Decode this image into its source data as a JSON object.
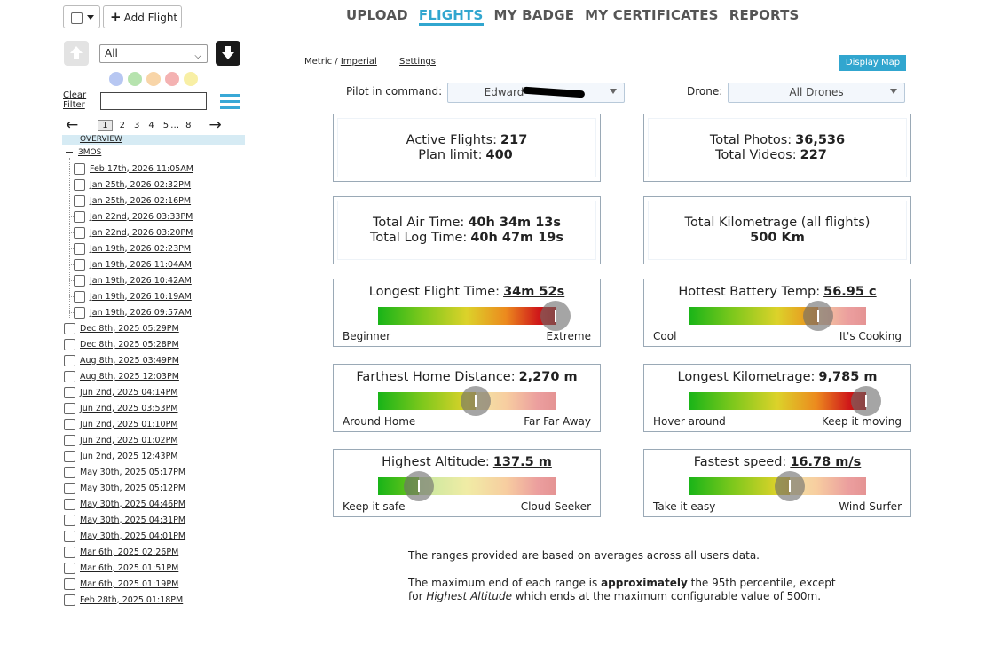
{
  "toolbar": {
    "select_all_caret": "▾",
    "add_flight_icon": "plus-icon",
    "add_flight_label": "Add Flight"
  },
  "nav": {
    "tabs": [
      {
        "label": "UPLOAD",
        "active": false
      },
      {
        "label": "FLIGHTS",
        "active": true
      },
      {
        "label": "MY BADGE",
        "active": false
      },
      {
        "label": "MY CERTIFICATES",
        "active": false
      },
      {
        "label": "REPORTS",
        "active": false
      }
    ],
    "accent_color": "#31a6cf"
  },
  "sidebar": {
    "filter_value": "All",
    "color_filters": [
      "#b7c7f2",
      "#b6e3ae",
      "#f8d5a8",
      "#f4b2b2",
      "#f8efa5"
    ],
    "clear_filter_label": "Clear Filter",
    "filter_input_value": "",
    "pagination": {
      "prev_icon": "←",
      "next_icon": "→",
      "pages": [
        "1",
        "2",
        "3",
        "4",
        "5",
        "…",
        "8"
      ],
      "current": "1"
    },
    "overview_label": "OVERVIEW",
    "group_label": "3MOS",
    "group_flights": [
      "Feb 17th, 2026 11:05AM",
      "Jan 25th, 2026 02:32PM",
      "Jan 25th, 2026 02:16PM",
      "Jan 22nd, 2026 03:33PM",
      "Jan 22nd, 2026 03:20PM",
      "Jan 19th, 2026 02:23PM",
      "Jan 19th, 2026 11:04AM",
      "Jan 19th, 2026 10:42AM",
      "Jan 19th, 2026 10:19AM",
      "Jan 19th, 2026 09:57AM"
    ],
    "flights": [
      "Dec 8th, 2025 05:29PM",
      "Dec 8th, 2025 05:28PM",
      "Aug 8th, 2025 03:49PM",
      "Aug 8th, 2025 12:03PM",
      "Jun 2nd, 2025 04:14PM",
      "Jun 2nd, 2025 03:53PM",
      "Jun 2nd, 2025 01:10PM",
      "Jun 2nd, 2025 01:02PM",
      "Jun 2nd, 2025 12:43PM",
      "May 30th, 2025 05:17PM",
      "May 30th, 2025 05:12PM",
      "May 30th, 2025 04:46PM",
      "May 30th, 2025 04:31PM",
      "May 30th, 2025 04:01PM",
      "Mar 6th, 2025 02:26PM",
      "Mar 6th, 2025 01:51PM",
      "Mar 6th, 2025 01:19PM",
      "Feb 28th, 2025 01:18PM"
    ]
  },
  "main": {
    "units_metric": "Metric",
    "units_sep": " / ",
    "units_imperial": "Imperial",
    "settings_label": "Settings",
    "display_map_label": "Display Map",
    "pilot_label": "Pilot in command:",
    "pilot_value": "Edward",
    "drone_label": "Drone:",
    "drone_value": "All Drones"
  },
  "stats": {
    "active_flights_label": "Active Flights:",
    "active_flights_value": "217",
    "plan_limit_label": "Plan limit:",
    "plan_limit_value": "400",
    "total_photos_label": "Total Photos:",
    "total_photos_value": "36,536",
    "total_videos_label": "Total Videos:",
    "total_videos_value": "227",
    "total_air_time_label": "Total Air Time:",
    "total_air_time_value": "40h 34m 13s",
    "total_log_time_label": "Total Log Time:",
    "total_log_time_value": "40h 47m 19s",
    "total_km_label": "Total Kilometrage (all flights)",
    "total_km_value": "500 Km"
  },
  "gauges": [
    {
      "title": "Longest Flight Time:",
      "value": "34m 52s",
      "low": "Beginner",
      "high": "Extreme",
      "level": 1.0
    },
    {
      "title": "Hottest Battery Temp:",
      "value": "56.95 c",
      "low": "Cool",
      "high": "It's Cooking",
      "level": 0.73
    },
    {
      "title": "Farthest Home Distance:",
      "value": "2,270 m",
      "low": "Around Home",
      "high": "Far Far Away",
      "level": 0.55
    },
    {
      "title": "Longest Kilometrage:",
      "value": "9,785 m",
      "low": "Hover around",
      "high": "Keep it moving",
      "level": 1.0
    },
    {
      "title": "Highest Altitude:",
      "value": "137.5 m",
      "low": "Keep it safe",
      "high": "Cloud Seeker",
      "level": 0.23
    },
    {
      "title": "Fastest speed:",
      "value": "16.78 m/s",
      "low": "Take it easy",
      "high": "Wind Surfer",
      "level": 0.57
    }
  ],
  "notes": {
    "line1": "The ranges provided are based on averages across all users data.",
    "line2_a": "The maximum end of each range is ",
    "line2_b": "approximately",
    "line2_c": " the 95th percentile, except",
    "line3_a": "for ",
    "line3_b": "Highest Altitude",
    "line3_c": " which ends at the maximum configurable value of 500m."
  }
}
